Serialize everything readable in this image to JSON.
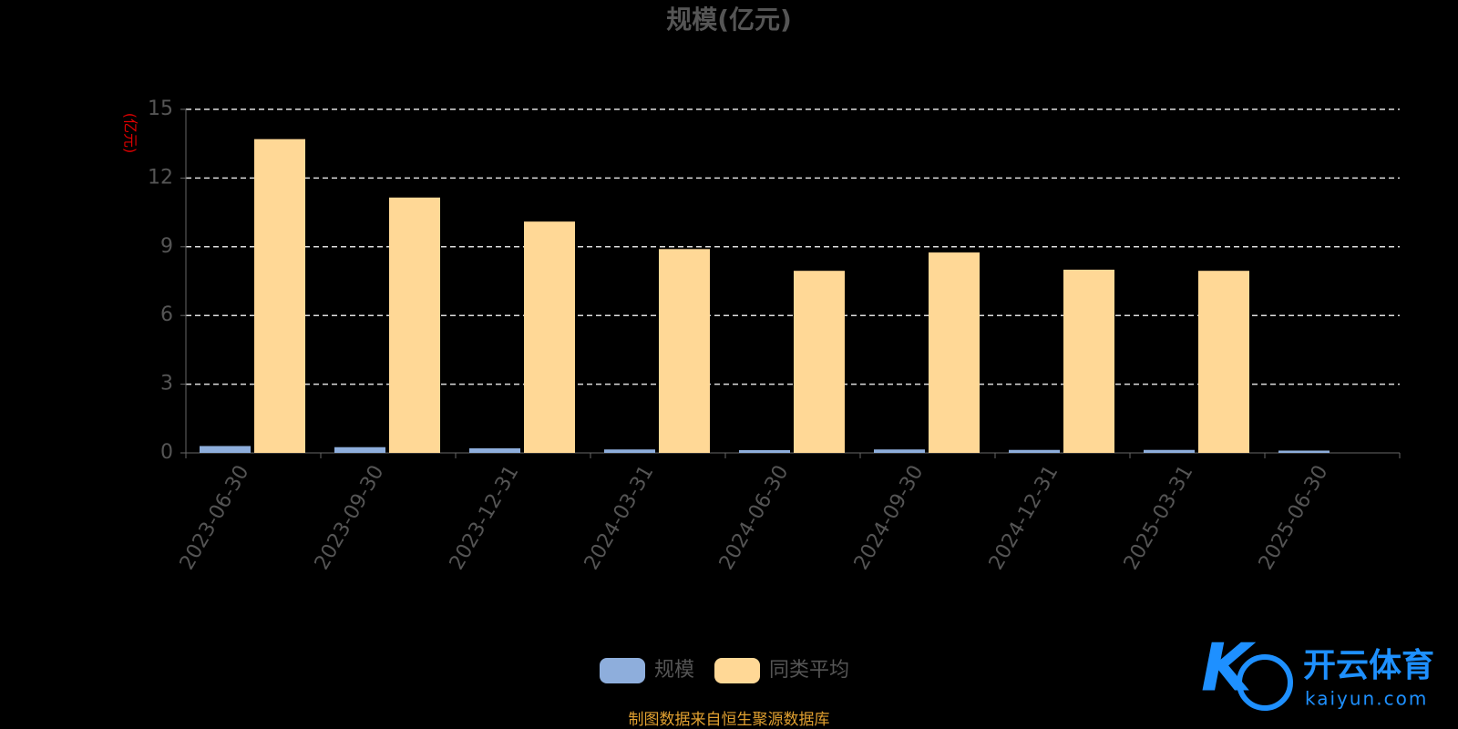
{
  "chart_data": {
    "type": "bar",
    "title": "规模(亿元)",
    "y_label": "(亿元)",
    "categories": [
      "2023-06-30",
      "2023-09-30",
      "2023-12-31",
      "2024-03-31",
      "2024-06-30",
      "2024-09-30",
      "2024-12-31",
      "2025-03-31",
      "2025-06-30"
    ],
    "series": [
      {
        "name": "规模",
        "color": "#8eaedc",
        "values": [
          0.3,
          0.25,
          0.2,
          0.15,
          0.12,
          0.15,
          0.13,
          0.13,
          0.1
        ]
      },
      {
        "name": "同类平均",
        "color": "#ffd896",
        "values": [
          13.7,
          11.15,
          10.1,
          8.9,
          7.95,
          8.75,
          8.0,
          7.95,
          null
        ]
      }
    ],
    "ylim": [
      0,
      15
    ],
    "yticks": [
      0,
      3,
      6,
      9,
      12,
      15
    ],
    "grid": true,
    "legend": "bottom",
    "source": "制图数据来自恒生聚源数据库",
    "watermark": {
      "brand": "开云体育",
      "site": "kaiyun.com"
    }
  }
}
